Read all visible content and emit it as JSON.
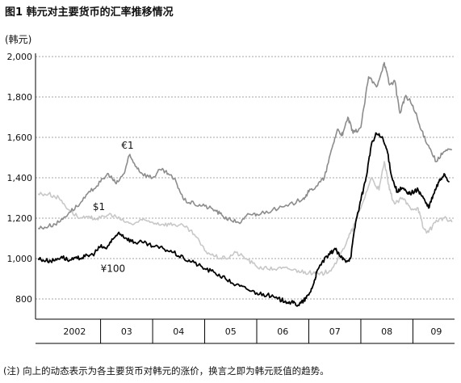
{
  "title": "图1 韩元对主要货币的汇率推移情况",
  "unit_label": "(韩元)",
  "note": "(注) 向上的动态表示为各主要货币对韩元的涨价，换言之即为韩元贬值的趋势。",
  "colors": {
    "eur": "#8c8c8c",
    "usd": "#c8c8c8",
    "jpy": "#000000",
    "grid": "#888888"
  },
  "chart_data": {
    "type": "line",
    "title": "",
    "xlabel": "",
    "ylabel": "(韩元)",
    "ylim": [
      700,
      2000
    ],
    "xlim": [
      2001.75,
      2009.8
    ],
    "yticks": [
      800,
      1000,
      1200,
      1400,
      1600,
      1800,
      2000
    ],
    "ytick_labels": [
      "800",
      "1,000",
      "1,200",
      "1,400",
      "1,600",
      "1,800",
      "2,000"
    ],
    "year_labels": [
      {
        "label": "2002",
        "x": 2002.5
      },
      {
        "label": "03",
        "x": 2003.5
      },
      {
        "label": "04",
        "x": 2004.5
      },
      {
        "label": "05",
        "x": 2005.5
      },
      {
        "label": "06",
        "x": 2006.5
      },
      {
        "label": "07",
        "x": 2007.5
      },
      {
        "label": "08",
        "x": 2008.5
      },
      {
        "label": "09",
        "x": 2009.45
      }
    ],
    "year_dividers": [
      2003,
      2004,
      2005,
      2006,
      2007,
      2008,
      2009
    ],
    "grid": true,
    "series": [
      {
        "key": "eur",
        "name": "€1",
        "label_at": [
          2003.4,
          1545
        ],
        "x": [
          2001.8,
          2002.0,
          2002.2,
          2002.4,
          2002.6,
          2002.8,
          2003.0,
          2003.15,
          2003.3,
          2003.45,
          2003.55,
          2003.65,
          2003.8,
          2004.0,
          2004.15,
          2004.3,
          2004.45,
          2004.6,
          2004.8,
          2005.0,
          2005.2,
          2005.35,
          2005.5,
          2005.7,
          2005.85,
          2006.0,
          2006.3,
          2006.6,
          2006.9,
          2007.0,
          2007.15,
          2007.3,
          2007.45,
          2007.55,
          2007.65,
          2007.75,
          2007.85,
          2008.0,
          2008.15,
          2008.3,
          2008.45,
          2008.55,
          2008.65,
          2008.75,
          2008.85,
          2008.95,
          2009.05,
          2009.15,
          2009.3,
          2009.45,
          2009.6,
          2009.75
        ],
        "y": [
          1150,
          1160,
          1180,
          1230,
          1270,
          1330,
          1380,
          1420,
          1370,
          1420,
          1510,
          1470,
          1420,
          1400,
          1440,
          1420,
          1380,
          1290,
          1270,
          1260,
          1240,
          1210,
          1190,
          1180,
          1220,
          1220,
          1240,
          1260,
          1300,
          1330,
          1360,
          1400,
          1550,
          1640,
          1610,
          1700,
          1620,
          1650,
          1900,
          1850,
          1970,
          1860,
          1880,
          1720,
          1800,
          1780,
          1720,
          1640,
          1560,
          1480,
          1530,
          1540
        ]
      },
      {
        "key": "usd",
        "name": "$1",
        "label_at": [
          2002.85,
          1240
        ],
        "x": [
          2001.8,
          2002.0,
          2002.2,
          2002.4,
          2002.6,
          2002.8,
          2003.0,
          2003.2,
          2003.4,
          2003.6,
          2003.8,
          2004.0,
          2004.2,
          2004.4,
          2004.6,
          2004.8,
          2005.0,
          2005.2,
          2005.4,
          2005.6,
          2005.8,
          2006.0,
          2006.2,
          2006.4,
          2006.6,
          2006.8,
          2007.0,
          2007.2,
          2007.4,
          2007.6,
          2007.75,
          2007.85,
          2008.0,
          2008.2,
          2008.35,
          2008.45,
          2008.55,
          2008.65,
          2008.8,
          2008.95,
          2009.1,
          2009.2,
          2009.3,
          2009.45,
          2009.6,
          2009.75
        ],
        "y": [
          1320,
          1320,
          1300,
          1240,
          1200,
          1200,
          1200,
          1220,
          1190,
          1170,
          1190,
          1180,
          1170,
          1170,
          1160,
          1120,
          1040,
          1010,
          1000,
          1030,
          1000,
          960,
          950,
          950,
          950,
          940,
          930,
          920,
          940,
          1010,
          1100,
          1150,
          1250,
          1400,
          1340,
          1480,
          1340,
          1270,
          1300,
          1250,
          1250,
          1150,
          1130,
          1190,
          1200,
          1180
        ]
      },
      {
        "key": "jpy",
        "name": "¥100",
        "label_at": [
          2003.0,
          935
        ],
        "x": [
          2001.8,
          2001.95,
          2002.1,
          2002.25,
          2002.4,
          2002.55,
          2002.7,
          2002.85,
          2003.0,
          2003.1,
          2003.2,
          2003.35,
          2003.5,
          2003.65,
          2003.8,
          2004.0,
          2004.2,
          2004.4,
          2004.6,
          2004.8,
          2005.0,
          2005.2,
          2005.4,
          2005.6,
          2005.8,
          2006.0,
          2006.2,
          2006.4,
          2006.55,
          2006.7,
          2006.8,
          2006.9,
          2007.0,
          2007.1,
          2007.15,
          2007.25,
          2007.4,
          2007.5,
          2007.6,
          2007.7,
          2007.8,
          2007.9,
          2008.0,
          2008.1,
          2008.2,
          2008.3,
          2008.4,
          2008.5,
          2008.6,
          2008.7,
          2008.8,
          2008.9,
          2009.0,
          2009.1,
          2009.2,
          2009.3,
          2009.4,
          2009.5,
          2009.6,
          2009.7
        ],
        "y": [
          1000,
          990,
          990,
          1010,
          990,
          1000,
          1010,
          1020,
          1060,
          1050,
          1080,
          1130,
          1100,
          1080,
          1080,
          1060,
          1050,
          1030,
          1000,
          980,
          950,
          930,
          900,
          870,
          850,
          830,
          820,
          800,
          790,
          780,
          770,
          790,
          820,
          880,
          930,
          980,
          1020,
          1050,
          1010,
          990,
          1000,
          1180,
          1290,
          1400,
          1560,
          1620,
          1600,
          1540,
          1400,
          1330,
          1350,
          1320,
          1330,
          1340,
          1300,
          1250,
          1320,
          1380,
          1420,
          1380
        ]
      }
    ]
  }
}
